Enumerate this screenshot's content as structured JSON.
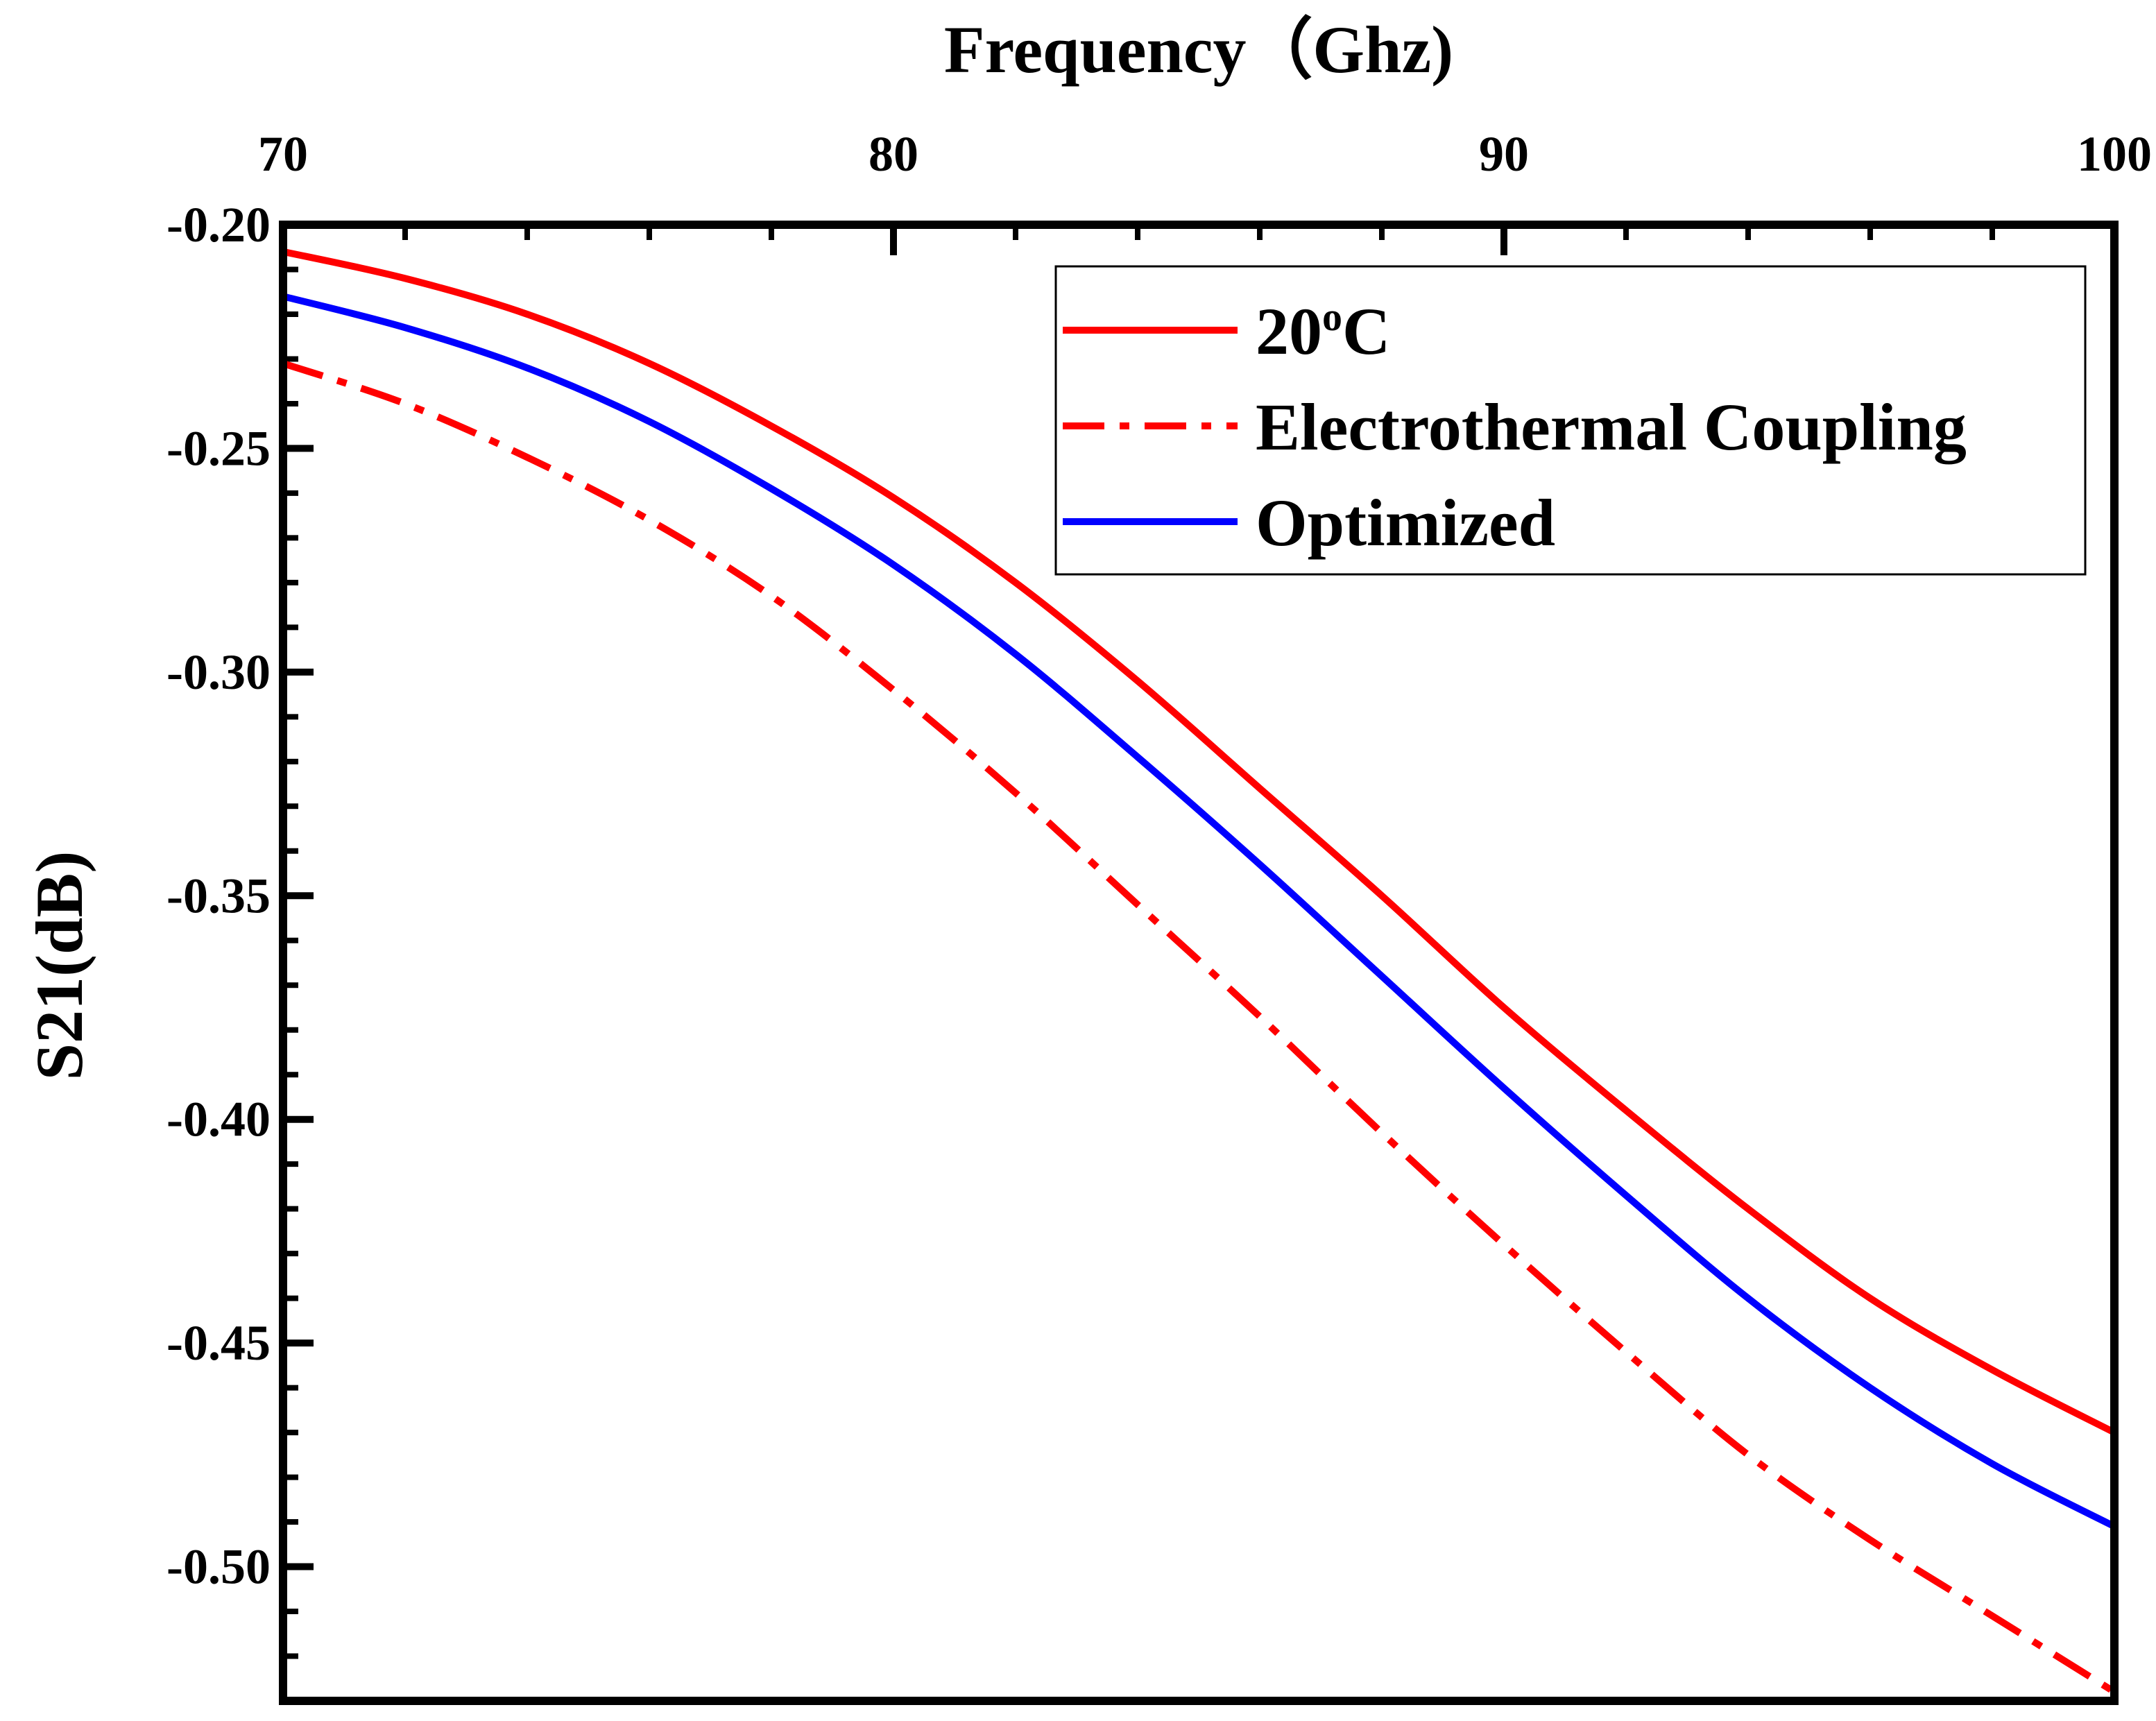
{
  "chart_data": {
    "type": "line",
    "xlabel": "Frequency（Ghz)",
    "ylabel": "S21(dB)",
    "xlim": [
      70,
      100
    ],
    "ylim": [
      -0.53,
      -0.2
    ],
    "x_ticks": [
      "70",
      "80",
      "90",
      "100"
    ],
    "y_ticks": [
      "-0.20",
      "-0.25",
      "-0.30",
      "-0.35",
      "-0.40",
      "-0.45",
      "-0.50"
    ],
    "x_tick_values": [
      70,
      80,
      90,
      100
    ],
    "y_tick_values": [
      -0.2,
      -0.25,
      -0.3,
      -0.35,
      -0.4,
      -0.45,
      -0.5
    ],
    "legend_position": "top-right",
    "series": [
      {
        "name": "20°C",
        "label_main": "20",
        "label_sup": "o",
        "label_tail": "C",
        "color": "#ff0000",
        "style": "solid",
        "x": [
          70,
          72,
          74,
          76,
          78,
          80,
          82,
          84,
          86,
          88,
          90,
          92,
          94,
          96,
          98,
          100
        ],
        "y": [
          -0.206,
          -0.212,
          -0.22,
          -0.231,
          -0.245,
          -0.261,
          -0.28,
          -0.302,
          -0.326,
          -0.35,
          -0.375,
          -0.398,
          -0.42,
          -0.44,
          -0.456,
          -0.47
        ]
      },
      {
        "name": "Electrothermal Coupling",
        "color": "#ff0000",
        "style": "dashdot",
        "x": [
          70,
          72,
          74,
          76,
          78,
          80,
          82,
          84,
          86,
          88,
          90,
          92,
          94,
          96,
          98,
          100
        ],
        "y": [
          -0.231,
          -0.24,
          -0.252,
          -0.266,
          -0.283,
          -0.304,
          -0.327,
          -0.352,
          -0.377,
          -0.403,
          -0.428,
          -0.452,
          -0.475,
          -0.494,
          -0.511,
          -0.528
        ]
      },
      {
        "name": "Optimized",
        "color": "#0000ff",
        "style": "solid",
        "x": [
          70,
          72,
          74,
          76,
          78,
          80,
          82,
          84,
          86,
          88,
          90,
          92,
          94,
          96,
          98,
          100
        ],
        "y": [
          -0.216,
          -0.223,
          -0.232,
          -0.244,
          -0.259,
          -0.276,
          -0.296,
          -0.319,
          -0.343,
          -0.368,
          -0.393,
          -0.417,
          -0.44,
          -0.46,
          -0.477,
          -0.491
        ]
      }
    ]
  }
}
